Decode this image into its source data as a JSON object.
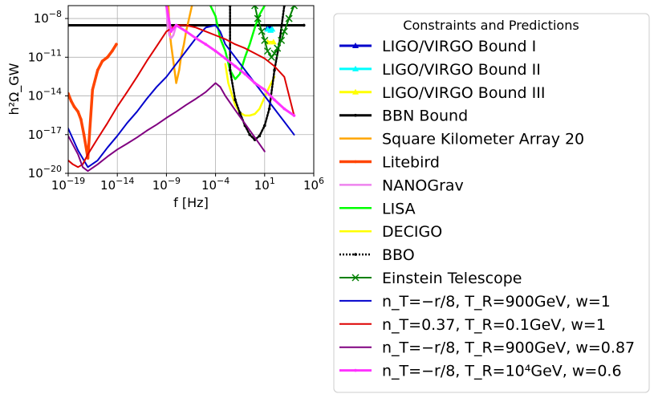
{
  "chart_data": {
    "type": "line",
    "xlabel": "f [Hz]",
    "ylabel": "h²Ω_GW",
    "xscale": "log",
    "yscale": "log",
    "xlim": [
      1e-19,
      1000000.0
    ],
    "ylim": [
      1e-20,
      1e-07
    ],
    "grid": true,
    "x_ticks": [
      {
        "value": 1e-19,
        "base": "10",
        "exp": "−19"
      },
      {
        "value": 1e-14,
        "base": "10",
        "exp": "−14"
      },
      {
        "value": 1e-09,
        "base": "10",
        "exp": "−9"
      },
      {
        "value": 0.0001,
        "base": "10",
        "exp": "−4"
      },
      {
        "value": 10,
        "base": "10",
        "exp": "1"
      },
      {
        "value": 1000000.0,
        "base": "10",
        "exp": "6"
      }
    ],
    "y_ticks": [
      {
        "value": 1e-20,
        "base": "10",
        "exp": "−20"
      },
      {
        "value": 1e-17,
        "base": "10",
        "exp": "−17"
      },
      {
        "value": 1e-14,
        "base": "10",
        "exp": "−14"
      },
      {
        "value": 1e-11,
        "base": "10",
        "exp": "−11"
      },
      {
        "value": 1e-08,
        "base": "10",
        "exp": "−8"
      }
    ],
    "legend": {
      "title": "Constraints and Predictions",
      "placement": "outside-right"
    },
    "series": [
      {
        "name": "LIGO/VIRGO Bound I",
        "color": "#0000cc",
        "width": 3,
        "marker": "triangle",
        "dash": "",
        "x": [
          20,
          35
        ],
        "y": [
          2e-09,
          2e-09
        ]
      },
      {
        "name": "LIGO/VIRGO Bound II",
        "color": "#00ffff",
        "width": 3,
        "marker": "triangle",
        "dash": "",
        "x": [
          20,
          40,
          60
        ],
        "y": [
          1.5e-09,
          1.2e-09,
          1.5e-09
        ]
      },
      {
        "name": "LIGO/VIRGO Bound III",
        "color": "#ffff00",
        "width": 3,
        "marker": "triangle",
        "dash": "",
        "x": [
          20,
          80
        ],
        "y": [
          1.5e-10,
          1.5e-10
        ]
      },
      {
        "name": "BBN Bound",
        "color": "#000000",
        "width": 3,
        "marker": "dot",
        "dash": "",
        "x": [
          1e-19,
          100000.0
        ],
        "y": [
          3e-09,
          3e-09
        ]
      },
      {
        "name": "Square Kilometer Array 20",
        "color": "#ffa500",
        "width": 2.5,
        "marker": "none",
        "dash": "",
        "x": [
          1.6e-09,
          2e-09,
          3e-09,
          5e-09,
          1e-08,
          2e-08,
          3e-08,
          6e-08,
          1e-07,
          2e-07,
          4e-07
        ],
        "y": [
          1e-07,
          1.5e-09,
          1e-10,
          5e-12,
          1e-13,
          1e-12,
          1e-11,
          1e-10,
          1e-09,
          1e-08,
          1e-07
        ]
      },
      {
        "name": "Litebird",
        "color": "#ff4500",
        "width": 3.5,
        "marker": "dot",
        "dash": "",
        "x": [
          1e-19,
          2e-19,
          4e-19,
          1e-18,
          2e-18,
          4e-18,
          1e-17,
          3e-17,
          1e-16,
          3e-16,
          1e-15,
          3e-15,
          8e-15
        ],
        "y": [
          1.5e-14,
          4e-15,
          1.5e-15,
          6e-16,
          1.5e-16,
          1e-17,
          1.5e-19,
          3e-14,
          1e-12,
          5e-12,
          1e-11,
          3e-11,
          1e-10
        ]
      },
      {
        "name": "NANOGrav",
        "color": "#ee82ee",
        "width": 2.5,
        "marker": "none",
        "dash": "",
        "x": [
          1e-09,
          1.3e-09,
          2e-09,
          3e-09,
          5e-09,
          1e-08
        ],
        "y": [
          1e-07,
          3e-09,
          5e-10,
          3e-10,
          5e-10,
          3e-09
        ]
      },
      {
        "name": "LISA",
        "color": "#00ff00",
        "width": 2.5,
        "marker": "none",
        "dash": "",
        "x": [
          3e-05,
          0.0001,
          0.0003,
          0.001,
          0.003,
          0.01,
          0.03,
          0.1,
          0.3,
          1,
          3,
          10
        ],
        "y": [
          1e-07,
          1.5e-08,
          3e-10,
          3e-11,
          1e-12,
          2e-13,
          5e-13,
          1e-11,
          1e-10,
          2e-09,
          2e-08,
          1e-07
        ]
      },
      {
        "name": "DECIGO",
        "color": "#ffff00",
        "width": 2.5,
        "marker": "none",
        "dash": "",
        "x": [
          0.001,
          0.002,
          0.005,
          0.01,
          0.03,
          0.1,
          0.3,
          1,
          3,
          10,
          30,
          100
        ],
        "y": [
          3e-12,
          1e-13,
          1e-14,
          2e-15,
          5e-16,
          3e-16,
          3e-16,
          4e-16,
          1e-15,
          8e-15,
          5e-14,
          3e-13
        ]
      },
      {
        "name": "BBO",
        "color": "#000000",
        "width": 2.5,
        "marker": "dot",
        "dash": "2,2",
        "x": [
          0.003,
          0.003,
          0.01,
          0.03,
          0.1,
          0.3,
          1,
          3,
          10,
          30,
          100,
          300,
          1000
        ],
        "y": [
          1e-07,
          1e-12,
          5e-15,
          5e-16,
          5e-17,
          1e-17,
          4e-18,
          8e-18,
          5e-17,
          1e-15,
          1e-12,
          1e-10,
          1e-07
        ]
      },
      {
        "name": "Einstein Telescope",
        "color": "#008000",
        "width": 2,
        "marker": "cross",
        "dash": "",
        "x": [
          1,
          2,
          5,
          10,
          20,
          50,
          100,
          200,
          500,
          1000,
          3000,
          10000
        ],
        "y": [
          1e-07,
          1e-08,
          1e-09,
          2e-10,
          3e-11,
          1e-11,
          2e-11,
          5e-11,
          2e-10,
          1e-09,
          1e-08,
          1e-07
        ]
      },
      {
        "name": "n_T=−r/8, T_R=900GeV, w=1",
        "color": "#0000cc",
        "width": 2,
        "marker": "none",
        "dash": "",
        "x": [
          1e-19,
          1e-18,
          1e-17,
          1e-16,
          1e-15,
          1e-14,
          1e-13,
          1e-12,
          1e-11,
          1e-10,
          1e-09,
          1e-08,
          1e-07,
          1e-06,
          1e-05,
          0.0001,
          0.0003,
          0.001,
          0.01,
          0.1,
          1,
          10,
          100,
          1000,
          10000.0
        ],
        "y": [
          3e-17,
          6e-19,
          3e-20,
          1e-19,
          1e-18,
          8e-18,
          8e-17,
          6e-16,
          6e-15,
          5e-14,
          3e-13,
          3e-12,
          3e-11,
          3e-10,
          2e-09,
          3e-09,
          1e-09,
          1e-10,
          1e-11,
          1e-12,
          1e-13,
          1e-14,
          1e-15,
          1e-16,
          1e-17
        ]
      },
      {
        "name": "n_T=0.37, T_R=0.1GeV, w=1",
        "color": "#dd0000",
        "width": 2,
        "marker": "none",
        "dash": "",
        "x": [
          1e-19,
          3e-19,
          1e-18,
          3e-18,
          1e-17,
          1e-16,
          1e-15,
          1e-14,
          1e-13,
          1e-12,
          1e-11,
          1e-10,
          1e-09,
          1e-08,
          1e-07,
          1e-06,
          1e-05,
          0.0001,
          0.001,
          0.01,
          0.1,
          1,
          10,
          100,
          1000,
          10000.0
        ],
        "y": [
          1e-19,
          5e-20,
          3e-20,
          5e-20,
          3e-19,
          5e-18,
          8e-17,
          1.5e-15,
          2e-14,
          3e-13,
          5e-12,
          7e-11,
          1e-09,
          3e-09,
          3e-09,
          2e-09,
          1e-09,
          5e-10,
          2.5e-10,
          1e-10,
          5e-11,
          2e-11,
          8e-12,
          2e-12,
          3e-13,
          3e-16
        ]
      },
      {
        "name": "n_T=−r/8, T_R=900GeV, w=0.87",
        "color": "#800080",
        "width": 2,
        "marker": "none",
        "dash": "",
        "x": [
          1e-19,
          1e-18,
          3e-18,
          1e-17,
          1e-16,
          1e-15,
          1e-14,
          1e-13,
          1e-12,
          1e-11,
          1e-10,
          1e-09,
          1e-08,
          1e-07,
          1e-06,
          1e-05,
          0.0001,
          0.0003,
          0.001,
          0.01,
          0.1,
          1,
          10
        ],
        "y": [
          8e-18,
          3e-19,
          3e-20,
          1.5e-20,
          5e-20,
          2e-19,
          7e-19,
          2e-18,
          6e-18,
          2e-17,
          6e-17,
          2e-16,
          6e-16,
          2e-15,
          6e-15,
          2e-14,
          1e-13,
          5e-14,
          1e-14,
          8e-16,
          7e-17,
          6e-18,
          5e-19
        ]
      },
      {
        "name": "n_T=−r/8, T_R=10⁴GeV, w=0.6",
        "color": "#ff33ff",
        "width": 3,
        "marker": "dot",
        "dash": "",
        "x": [
          1e-09,
          3e-09,
          1e-08,
          1e-07,
          1e-06,
          1e-05,
          0.0001,
          0.001,
          0.01,
          0.1,
          1,
          10,
          100,
          1000,
          10000.0
        ],
        "y": [
          1e-07,
          1e-09,
          3e-09,
          1e-09,
          3e-10,
          1e-10,
          3e-11,
          8e-12,
          2e-12,
          5e-13,
          1e-13,
          3e-14,
          5e-15,
          1e-15,
          3e-16
        ]
      }
    ]
  }
}
